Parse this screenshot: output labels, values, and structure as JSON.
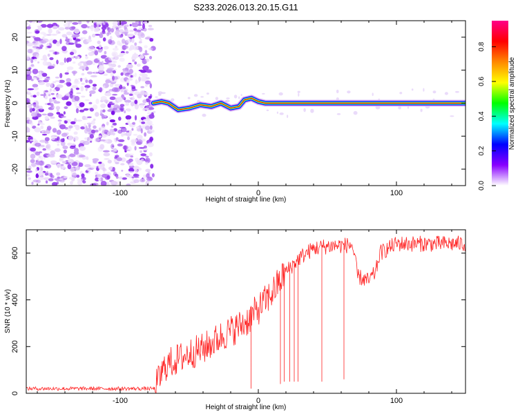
{
  "title": "S233.2026.013.20.15.G11",
  "chart_data": [
    {
      "type": "heatmap",
      "name": "spectrogram",
      "xlabel": "Height of straight line (km)",
      "ylabel": "Frequency (Hz)",
      "xlim": [
        -168,
        150
      ],
      "ylim": [
        -25,
        25
      ],
      "xticks": [
        -100,
        0,
        100
      ],
      "yticks": [
        -20,
        -10,
        0,
        10,
        20
      ],
      "colorbar": {
        "label": "Normalized spectral amplitude",
        "range": [
          0,
          0.95
        ],
        "ticks": [
          0.0,
          0.2,
          0.4,
          0.6,
          0.8
        ],
        "tick_labels": [
          "0.0",
          "0.2",
          "0.4",
          "0.6",
          "0.8"
        ],
        "colors": [
          "#ffffff",
          "#8800ff",
          "#0000ff",
          "#00ffff",
          "#00ff00",
          "#ffff00",
          "#ff8800",
          "#ff0000",
          "#ff0088"
        ]
      },
      "noise_region": {
        "x_from": -168,
        "x_to": -76
      },
      "carrier_track": [
        {
          "x": -76,
          "y": 0.0
        },
        {
          "x": -70,
          "y": 0.5
        },
        {
          "x": -65,
          "y": 0.0
        },
        {
          "x": -58,
          "y": -2.0
        },
        {
          "x": -50,
          "y": -1.5
        },
        {
          "x": -42,
          "y": -0.5
        },
        {
          "x": -34,
          "y": -1.0
        },
        {
          "x": -27,
          "y": 0.0
        },
        {
          "x": -20,
          "y": -1.5
        },
        {
          "x": -14,
          "y": -1.0
        },
        {
          "x": -10,
          "y": 1.0
        },
        {
          "x": -5,
          "y": 1.5
        },
        {
          "x": 0,
          "y": 0.5
        },
        {
          "x": 5,
          "y": 0.0
        },
        {
          "x": 10,
          "y": 0.0
        },
        {
          "x": 150,
          "y": 0.0
        }
      ]
    },
    {
      "type": "line",
      "name": "snr",
      "xlabel": "Height of straight line (km)",
      "ylabel": "SNR (10 * v/v)",
      "xlim": [
        -168,
        150
      ],
      "ylim": [
        0,
        700
      ],
      "xticks": [
        -100,
        0,
        100
      ],
      "yticks": [
        0,
        200,
        400,
        600
      ],
      "color": "#ff2020",
      "trend": [
        {
          "x": -168,
          "y": 20
        },
        {
          "x": -75,
          "y": 20
        },
        {
          "x": -67,
          "y": 120
        },
        {
          "x": -50,
          "y": 170
        },
        {
          "x": -40,
          "y": 190
        },
        {
          "x": -25,
          "y": 250
        },
        {
          "x": -10,
          "y": 300
        },
        {
          "x": 0,
          "y": 360
        },
        {
          "x": 10,
          "y": 430
        },
        {
          "x": 20,
          "y": 520
        },
        {
          "x": 30,
          "y": 580
        },
        {
          "x": 40,
          "y": 620
        },
        {
          "x": 50,
          "y": 630
        },
        {
          "x": 68,
          "y": 635
        },
        {
          "x": 72,
          "y": 500
        },
        {
          "x": 80,
          "y": 480
        },
        {
          "x": 85,
          "y": 520
        },
        {
          "x": 88,
          "y": 600
        },
        {
          "x": 100,
          "y": 640
        },
        {
          "x": 150,
          "y": 640
        }
      ],
      "dropouts": [
        {
          "x": -5,
          "y": 20
        },
        {
          "x": 16,
          "y": 40
        },
        {
          "x": 19,
          "y": 50
        },
        {
          "x": 23,
          "y": 50
        },
        {
          "x": 26,
          "y": 50
        },
        {
          "x": 29,
          "y": 50
        },
        {
          "x": 46,
          "y": 50
        },
        {
          "x": 62,
          "y": 60
        }
      ]
    }
  ]
}
